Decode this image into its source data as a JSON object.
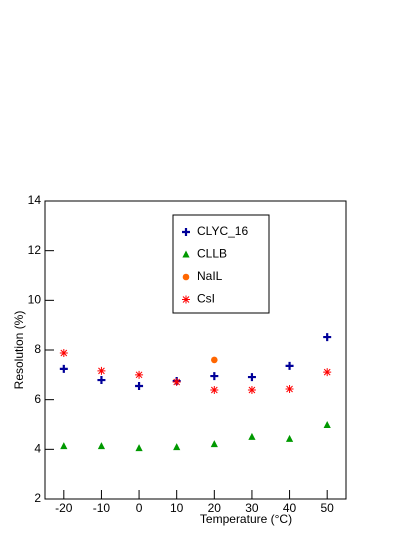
{
  "chart_data": {
    "type": "scatter",
    "x_label": "Temperature (°C)",
    "y_label": "Resolution (%)",
    "x": [
      -20,
      -10,
      0,
      10,
      20,
      30,
      40,
      50
    ],
    "series": [
      {
        "name": "CLYC_16",
        "color": "#000099",
        "marker": "plus",
        "values": [
          7.24,
          6.79,
          6.55,
          6.75,
          6.95,
          6.91,
          7.36,
          8.52
        ]
      },
      {
        "name": "CLLB",
        "color": "#009900",
        "marker": "triangle",
        "values": [
          4.13,
          4.13,
          4.05,
          4.09,
          4.21,
          4.5,
          4.42,
          4.98
        ]
      },
      {
        "name": "NaIL",
        "color": "#ff6600",
        "marker": "circle",
        "values": [
          null,
          null,
          null,
          null,
          7.6,
          null,
          null,
          null
        ]
      },
      {
        "name": "CsI",
        "color": "#ff0000",
        "marker": "star",
        "values": [
          7.88,
          7.16,
          7.0,
          6.71,
          6.39,
          6.39,
          6.43,
          7.11
        ]
      }
    ],
    "xlim": [
      -25,
      55
    ],
    "xticks": [
      -20,
      -10,
      0,
      10,
      20,
      30,
      40,
      50
    ],
    "ylim": [
      2,
      14
    ],
    "yticks": [
      2,
      4,
      6,
      8,
      10,
      12,
      14
    ],
    "grid": false
  }
}
